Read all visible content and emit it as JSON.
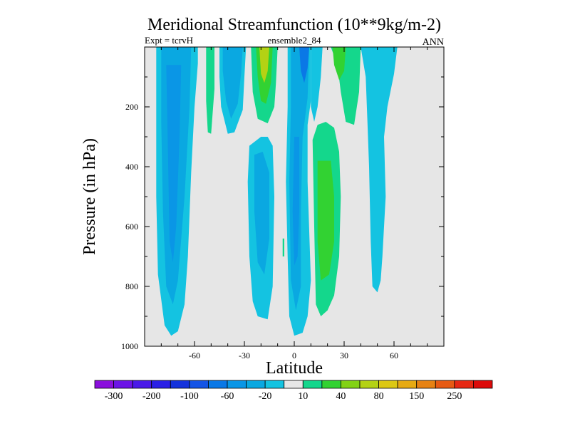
{
  "chart_data": {
    "type": "heatmap",
    "title": "Meridional Streamfunction (10**9kg/m-2)",
    "left_string": "Expt = tcrvH",
    "center_string": "ensemble2_84",
    "right_string": "ANN",
    "xlabel": "Latitude",
    "ylabel": "Pressure (in hPa)",
    "xlim": [
      -90,
      90
    ],
    "ylim": [
      0,
      1000
    ],
    "y_reversed": true,
    "xticks": [
      -60,
      -30,
      0,
      30,
      60
    ],
    "xtick_labels": [
      "-60",
      "-30",
      "0",
      "30",
      "60"
    ],
    "yticks": [
      200,
      400,
      600,
      800,
      1000
    ],
    "ytick_labels": [
      "200",
      "400",
      "600",
      "800",
      "1000"
    ],
    "background_color": "#e6e6e6",
    "colorbar": {
      "colors": [
        "#8a0fdc",
        "#6c14e6",
        "#4a19e8",
        "#2a1fe6",
        "#1432dc",
        "#1454e6",
        "#0a78e6",
        "#0a96e6",
        "#0aa8e1",
        "#14c3e1",
        "#e6e6e6",
        "#14d78c",
        "#32d232",
        "#82d214",
        "#b4d214",
        "#dcc814",
        "#e6aa14",
        "#e68214",
        "#e65a14",
        "#e62814",
        "#dc0a0a"
      ],
      "labels": [
        "-300",
        "-200",
        "-100",
        "-60",
        "-20",
        "10",
        "40",
        "80",
        "150",
        "250"
      ],
      "label_after_color_index": [
        0,
        2,
        4,
        6,
        8,
        10,
        12,
        14,
        16,
        18
      ]
    },
    "contours": [
      {
        "name": "nh-polar-cell",
        "value": -20,
        "color": "#14c3e1",
        "points": [
          [
            -83,
            0
          ],
          [
            -58,
            0
          ],
          [
            -58,
            55
          ],
          [
            -60,
            200
          ],
          [
            -62,
            420
          ],
          [
            -64,
            700
          ],
          [
            -66,
            860
          ],
          [
            -70,
            950
          ],
          [
            -74,
            965
          ],
          [
            -78,
            930
          ],
          [
            -82,
            760
          ],
          [
            -83,
            500
          ],
          [
            -83,
            200
          ]
        ]
      },
      {
        "name": "nh-polar-cell-inner",
        "value": -60,
        "color": "#0aa8e1",
        "points": [
          [
            -80,
            0
          ],
          [
            -62,
            0
          ],
          [
            -63,
            200
          ],
          [
            -66,
            500
          ],
          [
            -70,
            780
          ],
          [
            -73,
            860
          ],
          [
            -77,
            800
          ],
          [
            -79,
            550
          ],
          [
            -80,
            250
          ]
        ]
      },
      {
        "name": "nh-polar-cell-core",
        "value": -100,
        "color": "#0a96e6",
        "points": [
          [
            -77,
            60
          ],
          [
            -68,
            60
          ],
          [
            -69,
            300
          ],
          [
            -71,
            600
          ],
          [
            -73,
            720
          ],
          [
            -75,
            650
          ],
          [
            -76,
            350
          ]
        ]
      },
      {
        "name": "nh-narrow-positive",
        "value": 10,
        "color": "#14d78c",
        "points": [
          [
            -53,
            0
          ],
          [
            -48,
            0
          ],
          [
            -48,
            140
          ],
          [
            -50,
            290
          ],
          [
            -52,
            285
          ],
          [
            -53,
            180
          ]
        ]
      },
      {
        "name": "nh-mid-negative",
        "value": -20,
        "color": "#14c3e1",
        "points": [
          [
            -45,
            0
          ],
          [
            -29,
            0
          ],
          [
            -30,
            100
          ],
          [
            -31,
            210
          ],
          [
            -36,
            285
          ],
          [
            -40,
            290
          ],
          [
            -44,
            200
          ],
          [
            -45,
            100
          ]
        ]
      },
      {
        "name": "nh-mid-negative-core",
        "value": -60,
        "color": "#0aa8e1",
        "points": [
          [
            -43,
            0
          ],
          [
            -31,
            0
          ],
          [
            -32,
            90
          ],
          [
            -34,
            190
          ],
          [
            -38,
            240
          ],
          [
            -41,
            180
          ],
          [
            -43,
            80
          ]
        ]
      },
      {
        "name": "nh-upper-positive",
        "value": 10,
        "color": "#14d78c",
        "points": [
          [
            -26,
            0
          ],
          [
            -10,
            0
          ],
          [
            -11,
            120
          ],
          [
            -12,
            200
          ],
          [
            -16,
            255
          ],
          [
            -22,
            240
          ],
          [
            -25,
            150
          ]
        ]
      },
      {
        "name": "nh-upper-positive-mid",
        "value": 40,
        "color": "#32d232",
        "points": [
          [
            -23,
            0
          ],
          [
            -13,
            0
          ],
          [
            -14,
            120
          ],
          [
            -17,
            190
          ],
          [
            -20,
            180
          ],
          [
            -22,
            100
          ]
        ]
      },
      {
        "name": "nh-upper-positive-core",
        "value": 80,
        "color": "#b4d214",
        "points": [
          [
            -21,
            0
          ],
          [
            -15,
            0
          ],
          [
            -16,
            80
          ],
          [
            -18,
            120
          ],
          [
            -20,
            90
          ]
        ]
      },
      {
        "name": "nh-ferrel-cell",
        "value": -20,
        "color": "#14c3e1",
        "points": [
          [
            -20,
            300
          ],
          [
            -27,
            330
          ],
          [
            -28,
            450
          ],
          [
            -27,
            700
          ],
          [
            -25,
            850
          ],
          [
            -22,
            900
          ],
          [
            -16,
            910
          ],
          [
            -13,
            800
          ],
          [
            -12,
            500
          ],
          [
            -13,
            330
          ],
          [
            -16,
            300
          ]
        ]
      },
      {
        "name": "nh-ferrel-core",
        "value": -60,
        "color": "#0aa8e1",
        "points": [
          [
            -19,
            350
          ],
          [
            -24,
            360
          ],
          [
            -24,
            550
          ],
          [
            -22,
            720
          ],
          [
            -18,
            760
          ],
          [
            -15,
            640
          ],
          [
            -15,
            420
          ]
        ]
      },
      {
        "name": "small-positive-blob",
        "value": 10,
        "color": "#14d78c",
        "points": [
          [
            -7,
            640
          ],
          [
            -6,
            640
          ],
          [
            -6,
            700
          ],
          [
            -7,
            700
          ]
        ]
      },
      {
        "name": "hadley-negative-cell",
        "value": -20,
        "color": "#14c3e1",
        "points": [
          [
            -4,
            0
          ],
          [
            10,
            0
          ],
          [
            10,
            180
          ],
          [
            8,
            260
          ],
          [
            8,
            450
          ],
          [
            10,
            780
          ],
          [
            8,
            900
          ],
          [
            5,
            955
          ],
          [
            0,
            965
          ],
          [
            -3,
            900
          ],
          [
            -4,
            700
          ],
          [
            -5,
            450
          ],
          [
            -4,
            200
          ]
        ]
      },
      {
        "name": "hadley-negative-inner",
        "value": -60,
        "color": "#0aa8e1",
        "points": [
          [
            -2,
            0
          ],
          [
            9,
            0
          ],
          [
            8,
            170
          ],
          [
            5,
            300
          ],
          [
            4,
            550
          ],
          [
            4,
            800
          ],
          [
            1,
            880
          ],
          [
            -2,
            780
          ],
          [
            -3,
            450
          ],
          [
            -2,
            200
          ]
        ]
      },
      {
        "name": "hadley-negative-core",
        "value": -100,
        "color": "#0a96e6",
        "points": [
          [
            0,
            300
          ],
          [
            3,
            300
          ],
          [
            3,
            550
          ],
          [
            2,
            700
          ],
          [
            0,
            730
          ],
          [
            -1,
            550
          ]
        ]
      },
      {
        "name": "hadley-negative-top",
        "value": -100,
        "color": "#0a78e6",
        "points": [
          [
            3,
            0
          ],
          [
            9,
            0
          ],
          [
            8,
            70
          ],
          [
            6,
            120
          ],
          [
            4,
            80
          ]
        ]
      },
      {
        "name": "nh-upper-right-negative",
        "value": -20,
        "color": "#14c3e1",
        "points": [
          [
            10,
            0
          ],
          [
            17,
            0
          ],
          [
            16,
            100
          ],
          [
            14,
            200
          ],
          [
            12,
            250
          ],
          [
            10,
            200
          ]
        ]
      },
      {
        "name": "sh-positive-cell",
        "value": 10,
        "color": "#14d78c",
        "points": [
          [
            11,
            310
          ],
          [
            14,
            260
          ],
          [
            19,
            250
          ],
          [
            24,
            270
          ],
          [
            27,
            350
          ],
          [
            28,
            500
          ],
          [
            27,
            700
          ],
          [
            24,
            830
          ],
          [
            20,
            880
          ],
          [
            16,
            900
          ],
          [
            13,
            860
          ],
          [
            12,
            600
          ]
        ]
      },
      {
        "name": "sh-positive-core",
        "value": 40,
        "color": "#32d232",
        "points": [
          [
            14,
            380
          ],
          [
            22,
            380
          ],
          [
            24,
            500
          ],
          [
            24,
            650
          ],
          [
            21,
            760
          ],
          [
            16,
            780
          ],
          [
            14,
            650
          ]
        ]
      },
      {
        "name": "sh-upper-positive",
        "value": 10,
        "color": "#14d78c",
        "points": [
          [
            22,
            0
          ],
          [
            40,
            0
          ],
          [
            39,
            150
          ],
          [
            36,
            260
          ],
          [
            31,
            250
          ],
          [
            28,
            150
          ],
          [
            26,
            60
          ]
        ]
      },
      {
        "name": "sh-upper-positive-core",
        "value": 40,
        "color": "#32d232",
        "points": [
          [
            23,
            0
          ],
          [
            31,
            0
          ],
          [
            30,
            80
          ],
          [
            27,
            110
          ],
          [
            24,
            60
          ]
        ]
      },
      {
        "name": "sh-ferrel-negative",
        "value": -20,
        "color": "#14c3e1",
        "points": [
          [
            40,
            0
          ],
          [
            62,
            0
          ],
          [
            60,
            90
          ],
          [
            56,
            200
          ],
          [
            54,
            300
          ],
          [
            55,
            500
          ],
          [
            53,
            700
          ],
          [
            52,
            780
          ],
          [
            50,
            820
          ],
          [
            47,
            800
          ],
          [
            46,
            650
          ],
          [
            45,
            400
          ],
          [
            44,
            250
          ],
          [
            43,
            100
          ]
        ]
      }
    ]
  }
}
